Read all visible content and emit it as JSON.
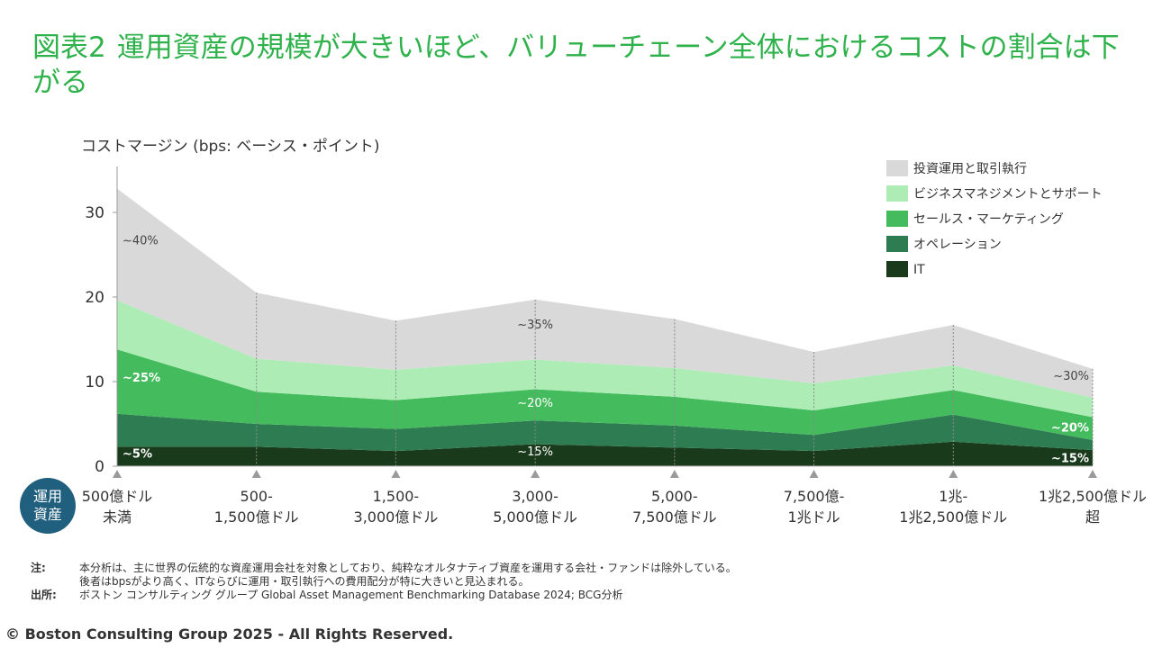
{
  "title": {
    "number": "図表2",
    "text": "運用資産の規模が大きいほど、バリューチェーン全体におけるコストの割合は下がる"
  },
  "chart_data": {
    "type": "area",
    "stacked": true,
    "ylabel": "コストマージン (bps: ベーシス・ポイント)",
    "ylim": [
      0,
      35
    ],
    "yticks": [
      0,
      10,
      20,
      30
    ],
    "grid": false,
    "legend_position": "top-right",
    "x_axis_badge": "運用\n資産",
    "categories": [
      "500億ドル\n未満",
      "500-\n1,500億ドル",
      "1,500-\n3,000億ドル",
      "3,000-\n5,000億ドル",
      "5,000-\n7,500億ドル",
      "7,500億-\n1兆ドル",
      "1兆-\n1兆2,500億ドル",
      "1兆2,500億ドル\n超"
    ],
    "series": [
      {
        "name": "IT",
        "color": "#1a3a1c",
        "values": [
          2.3,
          2.3,
          1.8,
          2.6,
          2.2,
          1.8,
          2.9,
          1.9
        ]
      },
      {
        "name": "オペレーション",
        "color": "#2e7d52",
        "values": [
          3.9,
          2.7,
          2.6,
          2.8,
          2.6,
          1.9,
          3.2,
          1.2
        ]
      },
      {
        "name": "セールス・マーケティング",
        "color": "#44bb5c",
        "values": [
          7.6,
          3.8,
          3.4,
          3.7,
          3.4,
          2.9,
          2.9,
          2.7
        ]
      },
      {
        "name": "ビジネスマネジメントとサポート",
        "color": "#adedb5",
        "values": [
          5.8,
          3.9,
          3.6,
          3.5,
          3.4,
          3.2,
          2.9,
          2.3
        ]
      },
      {
        "name": "投資運用と取引執行",
        "color": "#d9d9d9",
        "values": [
          13.2,
          7.8,
          5.8,
          7.1,
          5.8,
          3.7,
          4.8,
          3.4
        ]
      }
    ],
    "annotations": [
      {
        "text": "~40%",
        "category": 0,
        "y": 26.2
      },
      {
        "text": "~25%",
        "category": 0,
        "y": 10.0
      },
      {
        "text": "~5%",
        "category": 0,
        "y": 1.0
      },
      {
        "text": "~35%",
        "category": 3,
        "y": 16.3
      },
      {
        "text": "~20%",
        "category": 3,
        "y": 7.0
      },
      {
        "text": "~15%",
        "category": 3,
        "y": 1.3
      },
      {
        "text": "~30%",
        "category": 7,
        "y": 10.2
      },
      {
        "text": "~20%",
        "category": 7,
        "y": 4.1
      },
      {
        "text": "~15%",
        "category": 7,
        "y": 0.5
      }
    ]
  },
  "notes": {
    "note_label": "注:",
    "note_text": "本分析は、主に世界の伝統的な資産運用会社を対象としており、純粋なオルタナティブ資産を運用する会社・ファンドは除外している。\n後者はbpsがより高く、ITならびに運用・取引執行への費用配分が特に大きいと見込まれる。",
    "source_label": "出所:",
    "source_text": "ボストン コンサルティング グループ Global Asset Management Benchmarking Database 2024; BCG分析"
  },
  "copyright": "© Boston Consulting Group 2025 - All Rights Reserved."
}
